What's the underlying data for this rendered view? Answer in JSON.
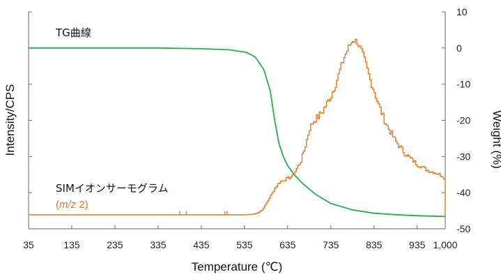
{
  "chart_data": {
    "type": "line",
    "xlabel": "Temperature (℃)",
    "ylabel_left": "Intensity/CPS",
    "ylabel_right": "Weight (%)",
    "x_ticks": [
      "35",
      "135",
      "235",
      "335",
      "435",
      "535",
      "635",
      "735",
      "835",
      "935",
      "1,000"
    ],
    "x_tick_values": [
      35,
      135,
      235,
      335,
      435,
      535,
      635,
      735,
      835,
      935,
      1000
    ],
    "xlim": [
      35,
      1000
    ],
    "y_right_ticks": [
      "10",
      "0",
      "-10",
      "-20",
      "-30",
      "-40",
      "-50"
    ],
    "y_right_tick_values": [
      10,
      0,
      -10,
      -20,
      -30,
      -40,
      -50
    ],
    "y_right_lim": [
      -50,
      10
    ],
    "y_left_ticks_labeled": false,
    "annotations": {
      "tg_label": "TG曲線",
      "sim_label": "SIMイオンサーモグラム",
      "sim_sublabel_italic": "m/z",
      "sim_sublabel_rest": " 2)",
      "sim_sublabel_open": "("
    },
    "series": [
      {
        "name": "TG曲線",
        "axis": "right",
        "color": "#22b04b",
        "x": [
          35,
          135,
          235,
          335,
          435,
          500,
          540,
          560,
          580,
          595,
          605,
          615,
          625,
          635,
          650,
          670,
          700,
          735,
          785,
          835,
          885,
          935,
          1000
        ],
        "values": [
          0,
          0,
          0,
          0,
          -0.2,
          -0.5,
          -1.2,
          -2.5,
          -6,
          -12,
          -20,
          -26.5,
          -30,
          -32.5,
          -35,
          -37.5,
          -40.5,
          -43,
          -44.8,
          -45.7,
          -46.1,
          -46.4,
          -46.6
        ]
      },
      {
        "name": "SIMイオンサーモグラム",
        "axis": "left",
        "color": "#e87722",
        "x": [
          35,
          535,
          555,
          565,
          575,
          585,
          595,
          605,
          615,
          625,
          635,
          645,
          655,
          665,
          675,
          685,
          695,
          705,
          715,
          725,
          735,
          745,
          755,
          765,
          775,
          785,
          795,
          805,
          815,
          825,
          835,
          845,
          855,
          865,
          875,
          885,
          895,
          905,
          915,
          925,
          935,
          945,
          955,
          965,
          975,
          985,
          995
        ],
        "values": [
          0,
          0,
          0.3,
          1,
          2.5,
          6,
          10,
          14,
          17,
          18,
          19,
          20,
          24,
          28,
          36,
          45,
          49,
          51,
          54,
          58,
          62,
          68,
          75,
          82,
          87,
          91,
          90,
          85,
          78,
          70,
          64,
          57,
          51,
          46,
          42,
          38,
          35,
          32,
          30,
          28,
          26,
          25,
          23.5,
          22.5,
          22,
          21,
          20
        ]
      }
    ]
  }
}
